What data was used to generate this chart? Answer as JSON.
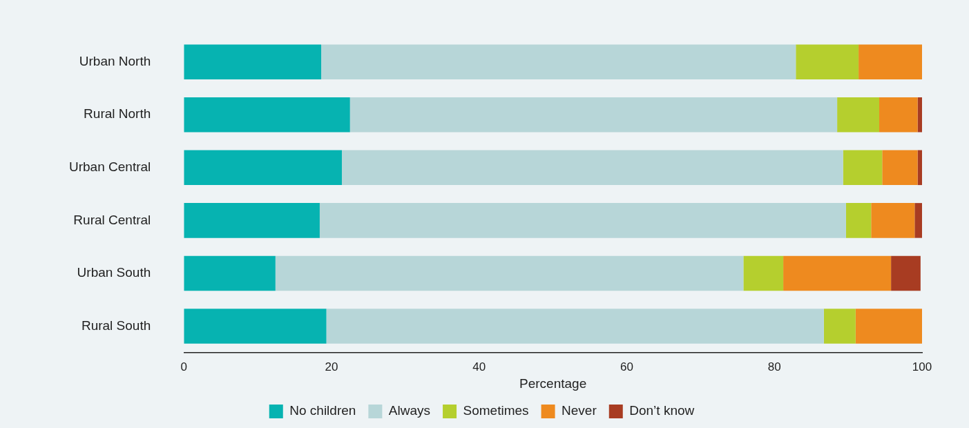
{
  "chart_data": {
    "type": "bar",
    "orientation": "horizontal",
    "stacked": true,
    "xlabel": "Percentage",
    "categories": [
      "Urban North",
      "Rural North",
      "Urban Central",
      "Rural Central",
      "Urban South",
      "Rural South"
    ],
    "series": [
      {
        "name": "No children",
        "color": "#06b3b1",
        "values": [
          18.6,
          22.5,
          21.4,
          18.4,
          12.4,
          19.3
        ]
      },
      {
        "name": "Always",
        "color": "#b7d6d8",
        "values": [
          64.3,
          66.0,
          67.9,
          71.3,
          63.4,
          67.4
        ]
      },
      {
        "name": "Sometimes",
        "color": "#b5cf2e",
        "values": [
          8.5,
          5.7,
          5.3,
          3.4,
          5.4,
          4.3
        ]
      },
      {
        "name": "Never",
        "color": "#ee8a1f",
        "values": [
          8.6,
          5.2,
          4.8,
          5.9,
          14.6,
          9.0
        ]
      },
      {
        "name": "Don’t know",
        "color": "#a83c22",
        "values": [
          0,
          0.6,
          0.6,
          1.0,
          4.0,
          0
        ]
      }
    ],
    "xlim": [
      0,
      100
    ],
    "xticks": [
      0,
      20,
      40,
      60,
      80,
      100
    ],
    "grid": false,
    "legend": "bottom"
  }
}
